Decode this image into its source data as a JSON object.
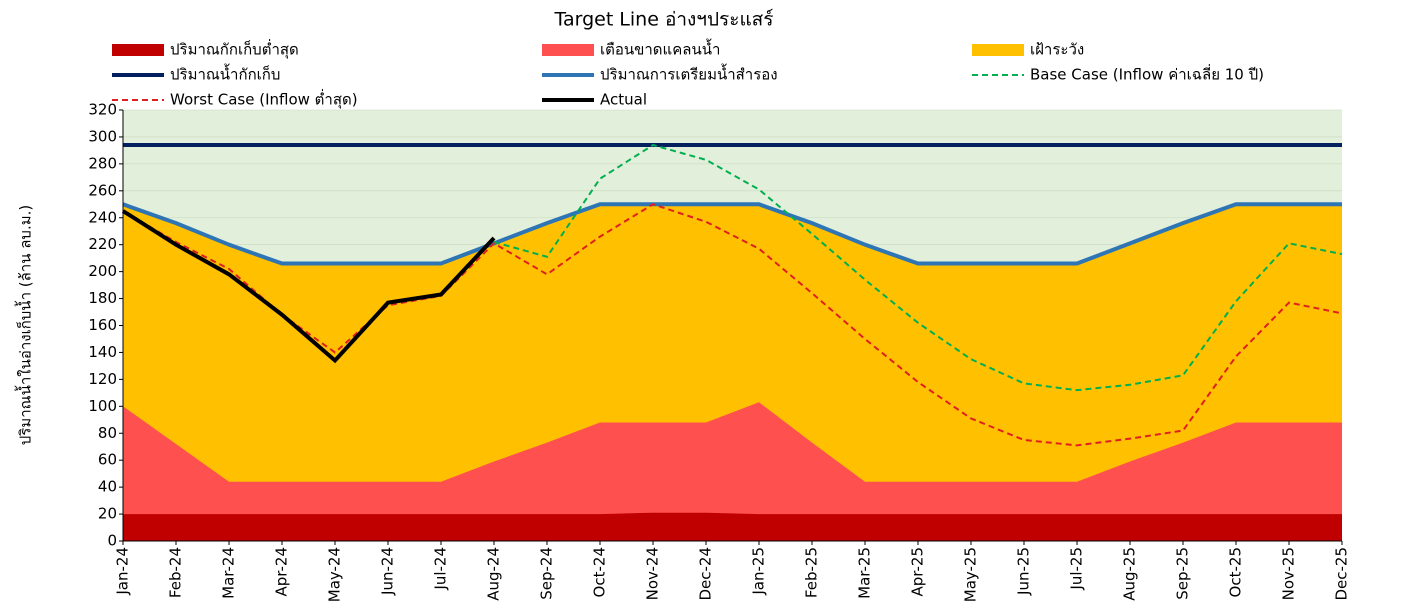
{
  "chart_data": {
    "type": "area",
    "title": "Target Line อ่างฯประแสร์",
    "y_label": "ปริมาณน้ำในอ่างเก็บน้ำ (ล้าน ลบ.ม.)",
    "plot_background": "#e2efda",
    "grid": true,
    "categories": [
      "Jan-24",
      "Feb-24",
      "Mar-24",
      "Apr-24",
      "May-24",
      "Jun-24",
      "Jul-24",
      "Aug-24",
      "Sep-24",
      "Oct-24",
      "Nov-24",
      "Dec-24",
      "Jan-25",
      "Feb-25",
      "Mar-25",
      "Apr-25",
      "May-25",
      "Jun-25",
      "Jul-25",
      "Aug-25",
      "Sep-25",
      "Oct-25",
      "Nov-25",
      "Dec-25"
    ],
    "ylim": [
      0,
      320
    ],
    "yticks": [
      0,
      20,
      40,
      60,
      80,
      100,
      120,
      140,
      160,
      180,
      200,
      220,
      240,
      260,
      280,
      300,
      320
    ],
    "series": [
      {
        "name": "ปริมาณกักเก็บต่ำสุด",
        "style": "area",
        "color": "#c00000",
        "values": [
          20,
          20,
          20,
          20,
          20,
          20,
          20,
          20,
          20,
          20,
          21,
          21,
          20,
          20,
          20,
          20,
          20,
          20,
          20,
          20,
          20,
          20,
          20,
          20
        ]
      },
      {
        "name": "เตือนขาดแคลนน้ำ",
        "style": "area",
        "color": "#ff5050",
        "values": [
          100,
          72,
          44,
          44,
          44,
          44,
          44,
          59,
          73,
          88,
          88,
          88,
          103,
          73,
          44,
          44,
          44,
          44,
          44,
          59,
          73,
          88,
          88,
          88
        ]
      },
      {
        "name": "เฝ้าระวัง",
        "style": "area",
        "color": "#ffc000",
        "values": [
          250,
          236,
          220,
          206,
          206,
          206,
          206,
          221,
          236,
          250,
          250,
          250,
          250,
          236,
          220,
          206,
          206,
          206,
          206,
          221,
          236,
          250,
          250,
          250
        ]
      },
      {
        "name": "ปริมาณน้ำกักเก็บ",
        "style": "line",
        "color": "#002060",
        "values": [
          294,
          294,
          294,
          294,
          294,
          294,
          294,
          294,
          294,
          294,
          294,
          294,
          294,
          294,
          294,
          294,
          294,
          294,
          294,
          294,
          294,
          294,
          294,
          294
        ]
      },
      {
        "name": "ปริมาณการเตรียมน้ำสำรอง",
        "style": "line",
        "color": "#2e75b6",
        "values": [
          250,
          236,
          220,
          206,
          206,
          206,
          206,
          221,
          236,
          250,
          250,
          250,
          250,
          236,
          220,
          206,
          206,
          206,
          206,
          221,
          236,
          250,
          250,
          250
        ]
      },
      {
        "name": "Base Case (Inflow ค่าเฉลี่ย 10 ปี)",
        "style": "dashed",
        "color": "#00b050",
        "values": [
          null,
          null,
          null,
          null,
          null,
          null,
          null,
          222,
          211,
          269,
          294,
          283,
          261,
          228,
          194,
          162,
          135,
          117,
          112,
          116,
          123,
          178,
          221,
          213
        ]
      },
      {
        "name": "Worst Case (Inflow ต่ำสุด)",
        "style": "dashed",
        "color": "#e02020",
        "values": [
          245,
          222,
          202,
          168,
          140,
          175,
          182,
          221,
          198,
          226,
          250,
          237,
          217,
          184,
          150,
          118,
          91,
          75,
          71,
          76,
          82,
          137,
          177,
          169
        ]
      },
      {
        "name": "Actual",
        "style": "line",
        "color": "#000000",
        "values": [
          245,
          220,
          198,
          168,
          134,
          177,
          183,
          225,
          null,
          null,
          null,
          null,
          null,
          null,
          null,
          null,
          null,
          null,
          null,
          null,
          null,
          null,
          null,
          null
        ]
      }
    ]
  }
}
